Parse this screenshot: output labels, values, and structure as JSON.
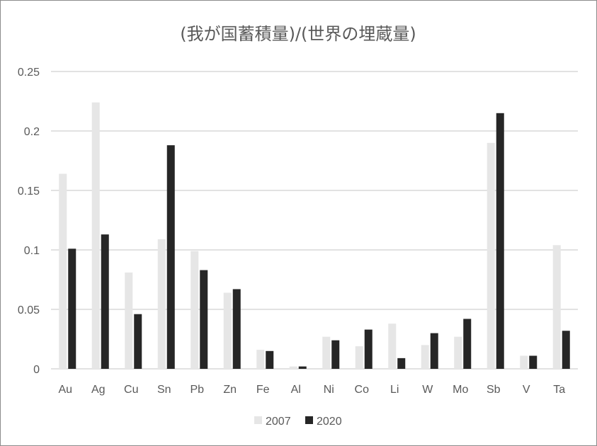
{
  "chart_data": {
    "type": "bar",
    "title": "(我が国蓄積量)/(世界の埋蔵量)",
    "xlabel": "",
    "ylabel": "",
    "ylim": [
      0,
      0.25
    ],
    "yticks": [
      "0",
      "0.05",
      "0.1",
      "0.15",
      "0.2",
      "0.25"
    ],
    "ytick_values": [
      0,
      0.05,
      0.1,
      0.15,
      0.2,
      0.25
    ],
    "grid": true,
    "legend_position": "bottom",
    "categories": [
      "Au",
      "Ag",
      "Cu",
      "Sn",
      "Pb",
      "Zn",
      "Fe",
      "Al",
      "Ni",
      "Co",
      "Li",
      "W",
      "Mo",
      "Sb",
      "V",
      "Ta"
    ],
    "series": [
      {
        "name": "2007",
        "color": "#e6e6e6",
        "values": [
          0.164,
          0.224,
          0.081,
          0.109,
          0.099,
          0.064,
          0.016,
          0.002,
          0.027,
          0.019,
          0.038,
          0.02,
          0.027,
          0.19,
          0.011,
          0.104
        ]
      },
      {
        "name": "2020",
        "color": "#262626",
        "values": [
          0.101,
          0.113,
          0.046,
          0.188,
          0.083,
          0.067,
          0.015,
          0.002,
          0.024,
          0.033,
          0.009,
          0.03,
          0.042,
          0.215,
          0.011,
          0.032
        ]
      }
    ],
    "gridline_color": "#d9d9d9"
  }
}
